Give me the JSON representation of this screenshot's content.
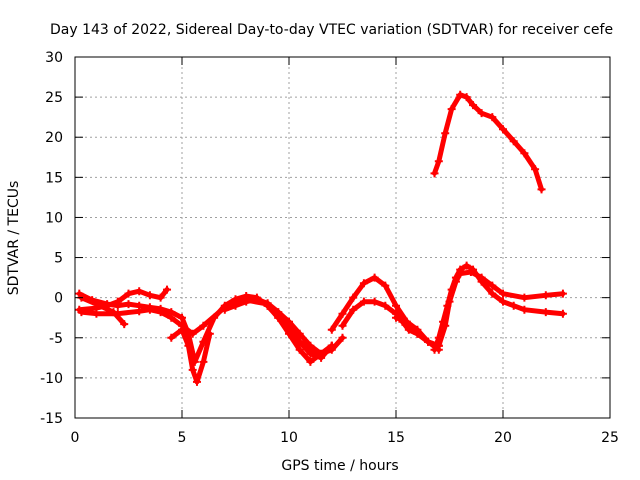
{
  "chart_data": {
    "type": "scatter",
    "title": "Day 143 of 2022, Sidereal Day-to-day VTEC variation (SDTVAR) for receiver cefe",
    "xlabel": "GPS time / hours",
    "ylabel": "SDTVAR / TECUs",
    "xlim": [
      0,
      25
    ],
    "ylim": [
      -15,
      30
    ],
    "xticks": [
      "0",
      "5",
      "10",
      "15",
      "20",
      "25"
    ],
    "yticks": [
      "-15",
      "-10",
      "-5",
      "0",
      "5",
      "10",
      "15",
      "20",
      "25",
      "30"
    ],
    "grid": true,
    "legend": "none",
    "marker": "+",
    "color": "#ff0000",
    "series": [
      {
        "name": "s1",
        "x": [
          0.2,
          0.8,
          1.5,
          2.0,
          2.5,
          3.0,
          3.5,
          4.0,
          4.5,
          5.0,
          5.3,
          5.6,
          6.0,
          6.5,
          7.0,
          7.5,
          8.0,
          8.5,
          9.0,
          9.5,
          10.0,
          10.5,
          11.0,
          11.5,
          12.0
        ],
        "y": [
          0.5,
          -0.3,
          -0.8,
          -1.0,
          -0.8,
          -1.0,
          -1.2,
          -1.4,
          -1.8,
          -2.5,
          -4.5,
          -8.0,
          -5.5,
          -2.5,
          -1.0,
          -0.2,
          0.2,
          0.0,
          -1.0,
          -2.5,
          -4.0,
          -5.5,
          -6.5,
          -7.0,
          -6.0
        ]
      },
      {
        "name": "s2",
        "x": [
          0.2,
          1.0,
          1.5,
          2.0,
          2.5,
          3.0,
          3.5,
          4.0,
          4.3
        ],
        "y": [
          -1.5,
          -1.3,
          -1.0,
          -0.5,
          0.5,
          0.8,
          0.3,
          0.0,
          1.0
        ]
      },
      {
        "name": "s3",
        "x": [
          0.3,
          1.0,
          2.0,
          3.0,
          3.5,
          4.0,
          4.5,
          5.0,
          5.5,
          6.0,
          7.0,
          8.0,
          9.0,
          9.5,
          10.0,
          10.5,
          11.0,
          11.5,
          12.0
        ],
        "y": [
          -1.8,
          -2.0,
          -2.0,
          -1.7,
          -1.5,
          -1.8,
          -2.5,
          -3.5,
          -4.5,
          -3.5,
          -1.2,
          -0.3,
          -0.8,
          -2.0,
          -3.5,
          -5.5,
          -7.0,
          -7.5,
          -6.0
        ]
      },
      {
        "name": "s4",
        "x": [
          0.3,
          1.0,
          1.8,
          2.3
        ],
        "y": [
          0.0,
          -0.8,
          -1.8,
          -3.3
        ]
      },
      {
        "name": "s5",
        "x": [
          4.5,
          5.0,
          5.3,
          5.5,
          5.7,
          6.0,
          6.3
        ],
        "y": [
          -5.0,
          -4.0,
          -6.0,
          -9.0,
          -10.5,
          -8.0,
          -4.5
        ]
      },
      {
        "name": "s6",
        "x": [
          7.0,
          7.5,
          8.0,
          8.5,
          9.0,
          9.5,
          10.0,
          10.5,
          11.0,
          11.5,
          12.0,
          12.5
        ],
        "y": [
          -1.5,
          -1.0,
          -0.5,
          -0.2,
          -0.7,
          -1.8,
          -3.0,
          -4.5,
          -6.0,
          -7.0,
          -6.5,
          -5.0
        ]
      },
      {
        "name": "s7",
        "x": [
          9.0,
          9.5,
          10.0,
          10.5,
          11.0,
          11.5,
          12.0
        ],
        "y": [
          -1.0,
          -2.5,
          -4.5,
          -6.5,
          -8.0,
          -7.0,
          -6.0
        ]
      },
      {
        "name": "s8",
        "x": [
          12.0,
          12.5,
          13.0,
          13.5,
          14.0,
          14.5,
          15.0,
          15.5,
          16.0,
          16.5,
          17.0
        ],
        "y": [
          -4.0,
          -2.0,
          0.0,
          1.8,
          2.5,
          1.5,
          -1.0,
          -3.0,
          -4.5,
          -5.5,
          -6.0
        ]
      },
      {
        "name": "s9",
        "x": [
          12.5,
          13.0,
          13.5,
          14.0,
          14.5,
          15.0,
          15.3,
          15.6,
          16.0,
          16.5,
          17.0
        ],
        "y": [
          -3.5,
          -1.5,
          -0.5,
          -0.5,
          -1.0,
          -2.0,
          -3.0,
          -4.0,
          -4.5,
          -5.5,
          -6.5
        ]
      },
      {
        "name": "s10",
        "x": [
          15.0,
          15.5,
          16.0,
          16.5,
          17.0,
          17.3,
          17.5,
          17.8,
          18.0,
          18.5,
          19.0,
          19.5,
          20.0,
          21.0,
          22.0,
          22.8
        ],
        "y": [
          -2.5,
          -3.0,
          -4.0,
          -5.5,
          -6.0,
          -3.5,
          -0.5,
          2.0,
          3.0,
          3.2,
          2.5,
          1.5,
          0.5,
          0.0,
          0.3,
          0.5
        ]
      },
      {
        "name": "s11",
        "x": [
          16.8,
          17.0,
          17.2,
          17.4,
          17.6,
          17.8,
          18.0,
          18.3,
          18.6,
          19.0,
          19.5,
          20.0,
          20.5,
          21.0,
          22.0,
          22.8
        ],
        "y": [
          -6.5,
          -5.0,
          -3.0,
          -1.0,
          1.0,
          2.5,
          3.5,
          4.0,
          3.5,
          2.0,
          0.5,
          -0.5,
          -1.0,
          -1.5,
          -1.8,
          -2.0
        ]
      },
      {
        "name": "s12",
        "x": [
          16.8,
          17.0,
          17.3,
          17.6,
          18.0,
          18.3,
          18.6,
          19.0,
          19.5,
          20.0,
          20.5,
          21.0,
          21.5,
          21.8
        ],
        "y": [
          15.5,
          17.0,
          20.5,
          23.5,
          25.3,
          25.0,
          24.0,
          23.0,
          22.5,
          21.0,
          19.5,
          18.0,
          16.0,
          13.5
        ]
      }
    ]
  }
}
